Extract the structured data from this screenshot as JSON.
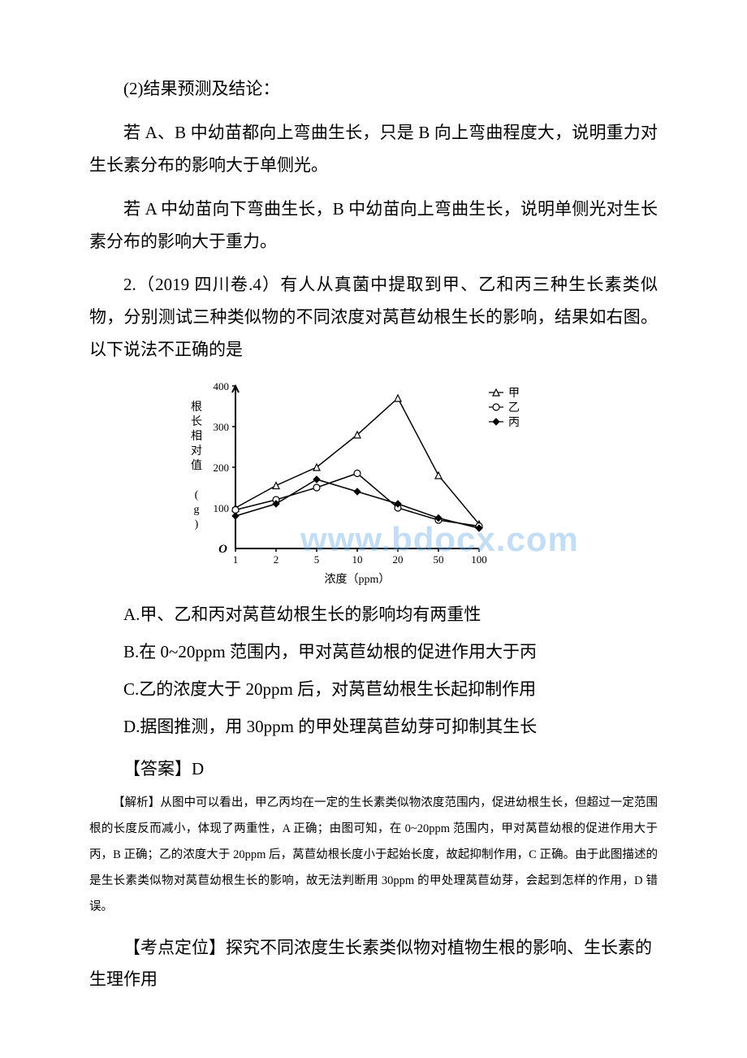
{
  "p1": "(2)结果预测及结论：",
  "p2": "若 A、B 中幼苗都向上弯曲生长，只是 B 向上弯曲程度大，说明重力对生长素分布的影响大于单侧光。",
  "p3": "若 A 中幼苗向下弯曲生长，B 中幼苗向上弯曲生长，说明单侧光对生长素分布的影响大于重力。",
  "p4": "2.（2019 四川卷.4）有人从真菌中提取到甲、乙和丙三种生长素类似物，分别测试三种类似物的不同浓度对莴苣幼根生长的影响，结果如右图。以下说法不正确的是",
  "chart": {
    "type": "line",
    "x_label": "浓度（ppm）",
    "y_label": "根长相对值 (g)",
    "x_ticks": [
      1,
      2,
      5,
      10,
      20,
      50,
      100
    ],
    "y_ticks": [
      0,
      100,
      200,
      300,
      400
    ],
    "ylim": [
      0,
      400
    ],
    "y_label_fontsize": 14,
    "x_label_fontsize": 14,
    "axis_color": "#000000",
    "line_color": "#000000",
    "background_color": "#ffffff",
    "line_width": 1.5,
    "legend": {
      "position": "top-right",
      "items": [
        {
          "name": "甲",
          "marker": "triangle-open"
        },
        {
          "name": "乙",
          "marker": "circle-open"
        },
        {
          "name": "丙",
          "marker": "diamond-filled"
        }
      ]
    },
    "series": [
      {
        "name": "甲",
        "marker": "triangle-open",
        "x": [
          1,
          2,
          5,
          10,
          20,
          50,
          100
        ],
        "y": [
          100,
          155,
          200,
          280,
          370,
          180,
          60
        ]
      },
      {
        "name": "乙",
        "marker": "circle-open",
        "x": [
          1,
          2,
          5,
          10,
          20,
          50,
          100
        ],
        "y": [
          95,
          120,
          150,
          185,
          100,
          70,
          55
        ]
      },
      {
        "name": "丙",
        "marker": "diamond-filled",
        "x": [
          1,
          2,
          5,
          10,
          20,
          50,
          100
        ],
        "y": [
          80,
          110,
          170,
          140,
          110,
          75,
          50
        ]
      }
    ]
  },
  "watermark": "www.bdocx.com",
  "optA": "A.甲、乙和丙对莴苣幼根生长的影响均有两重性",
  "optB": "B.在 0~20ppm 范围内，甲对莴苣幼根的促进作用大于丙",
  "optC": "C.乙的浓度大于 20ppm 后，对莴苣幼根生长起抑制作用",
  "optD": "D.据图推测，用 30ppm 的甲处理莴苣幼芽可抑制其生长",
  "answer": "【答案】D",
  "analysis": "【解析】从图中可以看出，甲乙丙均在一定的生长素类似物浓度范围内，促进幼根生长，但超过一定范围根的长度反而减小，体现了两重性，A 正确；由图可知，在 0~20ppm 范围内，甲对莴苣幼根的促进作用大于丙，B 正确；乙的浓度大于 20ppm 后，莴苣幼根长度小于起始长度，故起抑制作用，C 正确。由于此图描述的是生长素类似物对莴苣幼根生长的影响，故无法判断用 30ppm 的甲处理莴苣幼芽，会起到怎样的作用，D 错误。",
  "keypoint": "【考点定位】探究不同浓度生长素类似物对植物生根的影响、生长素的生理作用"
}
